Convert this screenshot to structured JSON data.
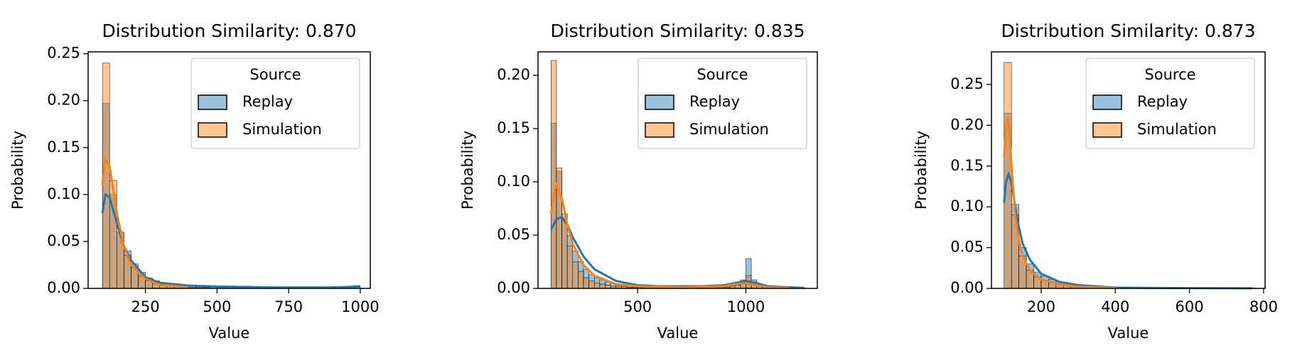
{
  "chart_data": [
    {
      "type": "histogram",
      "title": "Distribution Similarity: 0.870",
      "xlabel": "Value",
      "ylabel": "Probability",
      "legend_title": "Source",
      "legend": "upper right",
      "bins": [
        100,
        125,
        150,
        175,
        200,
        225,
        250,
        275,
        300,
        325,
        350,
        375,
        400,
        425,
        450,
        475,
        500,
        525,
        550,
        575,
        600,
        625,
        650,
        675,
        700,
        725,
        750,
        775,
        800,
        825,
        850,
        875,
        900,
        925,
        950,
        975,
        1000
      ],
      "series": [
        {
          "name": "Replay",
          "color": "#1f77b4",
          "values": [
            0.197,
            0.1,
            0.06,
            0.04,
            0.026,
            0.017,
            0.011,
            0.008,
            0.006,
            0.005,
            0.004,
            0.003,
            0.003,
            0.002,
            0.002,
            0.002,
            0.001,
            0.001,
            0.001,
            0.001,
            0.001,
            0.001,
            0.001,
            0.001,
            0.001,
            0.0005,
            0.0005,
            0.0005,
            0.0005,
            0.0005,
            0.0005,
            0.0005,
            0.0005,
            0.0005,
            0.0005,
            0.003
          ],
          "kde": {
            "x": [
              100,
              110,
              125,
              150,
              175,
              200,
              250,
              300,
              400,
              500,
              600,
              700,
              800,
              900,
              1000
            ],
            "values": [
              0.08,
              0.1,
              0.097,
              0.07,
              0.045,
              0.03,
              0.012,
              0.006,
              0.003,
              0.002,
              0.0015,
              0.001,
              0.001,
              0.001,
              0.002
            ]
          }
        },
        {
          "name": "Simulation",
          "color": "#ff7f0e",
          "values": [
            0.24,
            0.115,
            0.06,
            0.035,
            0.022,
            0.013,
            0.008,
            0.005,
            0.004,
            0.003,
            0.002,
            0.002,
            0.001,
            0.001,
            0.001,
            0,
            0,
            0,
            0,
            0,
            0,
            0,
            0,
            0,
            0,
            0,
            0,
            0,
            0,
            0,
            0,
            0,
            0,
            0,
            0,
            0
          ],
          "kde": {
            "x": [
              100,
              110,
              125,
              150,
              175,
              200,
              250,
              300,
              400
            ],
            "values": [
              0.11,
              0.138,
              0.13,
              0.08,
              0.045,
              0.025,
              0.01,
              0.004,
              0.001
            ]
          }
        }
      ],
      "xlim": [
        50,
        1035
      ],
      "xticks": [
        250,
        500,
        750,
        1000
      ],
      "ylim": [
        0,
        0.252
      ],
      "yticks": [
        {
          "value": 0,
          "label": "0.00"
        },
        {
          "value": 0.05,
          "label": "0.05"
        },
        {
          "value": 0.1,
          "label": "0.10"
        },
        {
          "value": 0.15,
          "label": "0.15"
        },
        {
          "value": 0.2,
          "label": "0.20"
        },
        {
          "value": 0.25,
          "label": "0.25"
        }
      ]
    },
    {
      "type": "histogram",
      "title": "Distribution Similarity: 0.835",
      "xlabel": "Value",
      "ylabel": "Probability",
      "legend_title": "Source",
      "legend": "upper right",
      "bins": [
        100,
        125,
        150,
        175,
        200,
        225,
        250,
        275,
        300,
        325,
        350,
        375,
        400,
        425,
        450,
        475,
        500,
        525,
        550,
        575,
        600,
        625,
        650,
        675,
        700,
        725,
        750,
        775,
        800,
        825,
        850,
        875,
        900,
        925,
        950,
        975,
        1000,
        1025,
        1050,
        1075,
        1100,
        1125,
        1150,
        1175,
        1200,
        1225,
        1250,
        1275
      ],
      "series": [
        {
          "name": "Replay",
          "color": "#1f77b4",
          "values": [
            0.155,
            0.11,
            0.07,
            0.05,
            0.035,
            0.025,
            0.018,
            0.013,
            0.01,
            0.008,
            0.006,
            0.005,
            0.004,
            0.003,
            0.003,
            0.002,
            0.002,
            0.002,
            0.002,
            0.002,
            0.002,
            0.002,
            0.002,
            0.002,
            0.002,
            0.002,
            0.002,
            0.002,
            0.002,
            0.002,
            0.002,
            0.002,
            0.003,
            0.004,
            0.006,
            0.008,
            0.028,
            0.008,
            0.004,
            0.002,
            0.001,
            0.001,
            0.001,
            0.001,
            0.0005,
            0.0005,
            0.0005
          ],
          "kde": {
            "x": [
              100,
              125,
              150,
              175,
              200,
              250,
              300,
              400,
              500,
              600,
              700,
              800,
              900,
              950,
              1000,
              1050,
              1100,
              1200,
              1270
            ],
            "values": [
              0.055,
              0.065,
              0.067,
              0.06,
              0.048,
              0.03,
              0.018,
              0.007,
              0.003,
              0.002,
              0.002,
              0.002,
              0.003,
              0.005,
              0.007,
              0.005,
              0.002,
              0.001,
              0.0005
            ]
          }
        },
        {
          "name": "Simulation",
          "color": "#ff7f0e",
          "values": [
            0.214,
            0.113,
            0.065,
            0.04,
            0.025,
            0.016,
            0.01,
            0.007,
            0.005,
            0.004,
            0.003,
            0.002,
            0.002,
            0.002,
            0.001,
            0.001,
            0.001,
            0.001,
            0.001,
            0.001,
            0.001,
            0.001,
            0.001,
            0.001,
            0.001,
            0.001,
            0.001,
            0.001,
            0.001,
            0.001,
            0.001,
            0.001,
            0.001,
            0.002,
            0.003,
            0.005,
            0.012,
            0.005,
            0.002,
            0.001,
            0,
            0,
            0,
            0,
            0,
            0,
            0
          ],
          "kde": {
            "x": [
              100,
              115,
              125,
              150,
              175,
              200,
              250,
              300,
              400,
              500,
              700,
              900,
              950,
              1000,
              1050,
              1100,
              1200
            ],
            "values": [
              0.07,
              0.09,
              0.097,
              0.085,
              0.06,
              0.042,
              0.022,
              0.012,
              0.004,
              0.002,
              0.001,
              0.002,
              0.004,
              0.005,
              0.003,
              0.001,
              0.0005
            ]
          }
        }
      ],
      "xlim": [
        40,
        1330
      ],
      "xticks": [
        500,
        1000
      ],
      "ylim": [
        0,
        0.222
      ],
      "yticks": [
        {
          "value": 0,
          "label": "0.00"
        },
        {
          "value": 0.05,
          "label": "0.05"
        },
        {
          "value": 0.1,
          "label": "0.10"
        },
        {
          "value": 0.15,
          "label": "0.15"
        },
        {
          "value": 0.2,
          "label": "0.20"
        }
      ]
    },
    {
      "type": "histogram",
      "title": "Distribution Similarity: 0.873",
      "xlabel": "Value",
      "ylabel": "Probability",
      "legend_title": "Source",
      "legend": "upper right",
      "bins": [
        100,
        120,
        140,
        160,
        180,
        200,
        220,
        240,
        260,
        280,
        300,
        320,
        340,
        360,
        380,
        400,
        420,
        440,
        460,
        480,
        500,
        520,
        540,
        560,
        580,
        600,
        620,
        640,
        660,
        680,
        700,
        720,
        740,
        760,
        780
      ],
      "series": [
        {
          "name": "Replay",
          "color": "#1f77b4",
          "values": [
            0.215,
            0.103,
            0.05,
            0.03,
            0.02,
            0.015,
            0.011,
            0.008,
            0.006,
            0.005,
            0.004,
            0.003,
            0.002,
            0.002,
            0.002,
            0.001,
            0.001,
            0.001,
            0.001,
            0.001,
            0.001,
            0.0005,
            0.0005,
            0.0005,
            0.0005,
            0.0005,
            0.0005,
            0.0005,
            0.0005,
            0.0005,
            0.0005,
            0.0005,
            0.0005,
            0.0005
          ],
          "kde": {
            "x": [
              100,
              105,
              112,
              120,
              130,
              140,
              150,
              170,
              200,
              250,
              300,
              400,
              500,
              600,
              700,
              770
            ],
            "values": [
              0.105,
              0.13,
              0.14,
              0.13,
              0.1,
              0.075,
              0.055,
              0.035,
              0.018,
              0.008,
              0.004,
              0.001,
              0.0005,
              0.0003,
              0.0002,
              0.0001
            ]
          }
        },
        {
          "name": "Simulation",
          "color": "#ff7f0e",
          "values": [
            0.277,
            0.09,
            0.04,
            0.022,
            0.014,
            0.01,
            0.007,
            0.005,
            0.004,
            0.003,
            0.002,
            0.002,
            0.001,
            0.001,
            0.001,
            0,
            0,
            0,
            0,
            0,
            0,
            0,
            0,
            0,
            0,
            0,
            0,
            0,
            0,
            0,
            0,
            0,
            0,
            0
          ],
          "kde": {
            "x": [
              100,
              105,
              110,
              115,
              120,
              130,
              140,
              150,
              170,
              200,
              250,
              300,
              400
            ],
            "values": [
              0.16,
              0.2,
              0.21,
              0.19,
              0.15,
              0.09,
              0.06,
              0.04,
              0.022,
              0.011,
              0.005,
              0.002,
              0.0005
            ]
          }
        }
      ],
      "xlim": [
        66,
        804
      ],
      "xticks": [
        200,
        400,
        600,
        800
      ],
      "ylim": [
        0,
        0.29
      ],
      "yticks": [
        {
          "value": 0,
          "label": "0.00"
        },
        {
          "value": 0.05,
          "label": "0.05"
        },
        {
          "value": 0.1,
          "label": "0.10"
        },
        {
          "value": 0.15,
          "label": "0.15"
        },
        {
          "value": 0.2,
          "label": "0.20"
        },
        {
          "value": 0.25,
          "label": "0.25"
        }
      ]
    }
  ]
}
